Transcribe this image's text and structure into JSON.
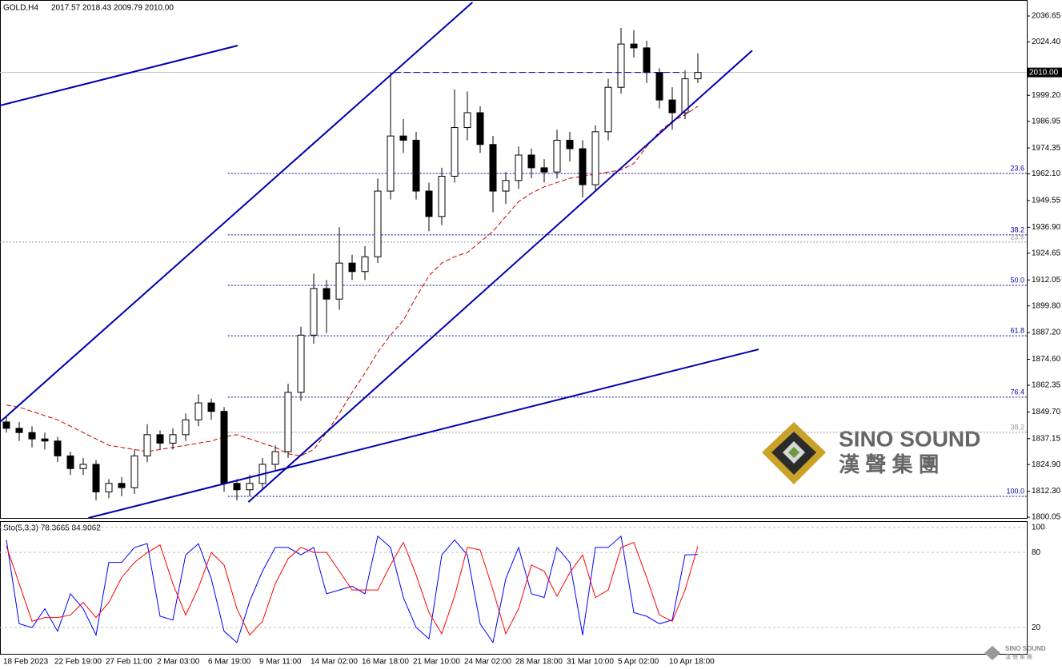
{
  "chart_data": [
    {
      "type": "candlestick",
      "title": "GOLD,H4",
      "header": "2017.57 2018.43 2009.79 2010.00",
      "categories": [
        "18 Feb 2023",
        null,
        null,
        null,
        "22 Feb 19:00",
        null,
        null,
        null,
        "27 Feb 11:00",
        null,
        null,
        null,
        "2 Mar 03:00",
        null,
        null,
        null,
        "6 Mar 19:00",
        null,
        null,
        null,
        "9 Mar 11:00",
        null,
        null,
        null,
        "14 Mar 02:00",
        null,
        null,
        null,
        "16 Mar 18:00",
        null,
        null,
        null,
        "21 Mar 10:00",
        null,
        null,
        null,
        "24 Mar 02:00",
        null,
        null,
        null,
        "28 Mar 18:00",
        null,
        null,
        null,
        "31 Mar 10:00",
        null,
        null,
        null,
        "5 Apr 02:00",
        null,
        null,
        null,
        "10 Apr 18:00",
        null,
        null
      ],
      "open": [
        1845,
        1842,
        1840,
        1837,
        1836,
        1829,
        1823,
        1825,
        1812,
        1816,
        1814,
        1829,
        1839,
        1835,
        1839,
        1846,
        1854,
        1850,
        1816,
        1813,
        1816,
        1825,
        1831,
        1859,
        1886,
        1908,
        1903,
        1920,
        1916,
        1923,
        1954,
        1980,
        1978,
        1954,
        1942,
        1961,
        1984,
        1991,
        1976,
        1954,
        1959,
        1971,
        1965,
        1963,
        1978,
        1974,
        1957,
        1982,
        2003,
        2023.4,
        2021.6,
        2010,
        1997,
        1991,
        2007
      ],
      "high": [
        1848,
        1845,
        1843,
        1840,
        1838,
        1831,
        1828,
        1827,
        1818,
        1819,
        1832,
        1844,
        1841,
        1842,
        1849,
        1858,
        1856,
        1852,
        1818,
        1820,
        1828,
        1834,
        1863,
        1890,
        1915,
        1912,
        1937,
        1924,
        1928,
        1960,
        2010,
        1988,
        1982,
        1958,
        1965,
        2002,
        2001,
        1994,
        1980,
        1963,
        1975,
        1974,
        1969,
        1983,
        1982,
        1978,
        1985,
        2007,
        2031,
        2030,
        2025,
        2012,
        2003,
        2011,
        2019
      ],
      "low": [
        1840,
        1836,
        1833,
        1832,
        1826,
        1820,
        1820,
        1808,
        1809,
        1810,
        1811,
        1826,
        1832,
        1832,
        1836,
        1843,
        1846,
        1812,
        1808,
        1810,
        1813,
        1822,
        1828,
        1855,
        1882,
        1887,
        1898,
        1912,
        1912,
        1920,
        1950,
        1972,
        1950,
        1935,
        1938,
        1958,
        1978,
        1972,
        1944,
        1948,
        1955,
        1960,
        1958,
        1960,
        1968,
        1951,
        1954,
        1978,
        2000,
        2017,
        2005,
        1993,
        1983,
        1988,
        2005
      ],
      "close": [
        1842,
        1840,
        1837,
        1836,
        1829,
        1823,
        1825,
        1812,
        1816,
        1814,
        1829,
        1839,
        1835,
        1839,
        1846,
        1854,
        1850,
        1816,
        1813,
        1816,
        1825,
        1831,
        1859,
        1886,
        1908,
        1903,
        1920,
        1916,
        1923,
        1954,
        1980,
        1978,
        1954,
        1942,
        1961,
        1984,
        1991,
        1976,
        1954,
        1959,
        1971,
        1965,
        1963,
        1978,
        1974,
        1957,
        1982,
        2003,
        2023.4,
        2021.6,
        2010,
        1997,
        1991,
        2007,
        2010
      ],
      "moving_average": [
        1853,
        1852,
        1850,
        1848,
        1846,
        1843,
        1840,
        1837,
        1834,
        1833,
        1832,
        1831,
        1832,
        1833,
        1834,
        1835,
        1836,
        1838,
        1839,
        1837,
        1835,
        1833,
        1830,
        1829,
        1832,
        1840,
        1849,
        1859,
        1868,
        1878,
        1886,
        1893,
        1904,
        1914,
        1920,
        1923,
        1925,
        1930,
        1935,
        1942,
        1949,
        1953,
        1956,
        1958,
        1960,
        1961,
        1962,
        1963,
        1964,
        1967,
        1975,
        1982,
        1987,
        1990,
        1994
      ],
      "ma_color": "#cc0000",
      "ylim": [
        1799.7,
        2044.2
      ],
      "yticks": [
        {
          "value": 2036.65,
          "label": "2036.65"
        },
        {
          "value": 2024.4,
          "label": "2024.40"
        },
        {
          "value": 1999.2,
          "label": "1999.20"
        },
        {
          "value": 1986.95,
          "label": "1986.95"
        },
        {
          "value": 1974.35,
          "label": "1974.35"
        },
        {
          "value": 1962.1,
          "label": "1962.10"
        },
        {
          "value": 1949.55,
          "label": "1949.55"
        },
        {
          "value": 1936.9,
          "label": "1936.90"
        },
        {
          "value": 1924.65,
          "label": "1924.65"
        },
        {
          "value": 1912.05,
          "label": "1912.05"
        },
        {
          "value": 1899.8,
          "label": "1899.80"
        },
        {
          "value": 1887.2,
          "label": "1887.20"
        },
        {
          "value": 1874.6,
          "label": "1874.60"
        },
        {
          "value": 1862.35,
          "label": "1862.35"
        },
        {
          "value": 1849.7,
          "label": "1849.70"
        },
        {
          "value": 1837.15,
          "label": "1837.15"
        },
        {
          "value": 1824.9,
          "label": "1824.90"
        },
        {
          "value": 1812.3,
          "label": "1812.30"
        },
        {
          "value": 1800.05,
          "label": "1800.05"
        }
      ],
      "current_price": {
        "value": 2010,
        "label": "2010.00"
      },
      "fib_start": 17.3,
      "fib_levels": [
        {
          "label": "23.6",
          "value": 1962.3,
          "color": "#0000a0"
        },
        {
          "label": "38.2",
          "value": 1933.3,
          "color": "#0000a0"
        },
        {
          "label": "50.0",
          "value": 1909.5,
          "color": "#0000a0"
        },
        {
          "label": "61.8",
          "value": 1885.7,
          "color": "#0000a0"
        },
        {
          "label": "76.4",
          "value": 1856.7,
          "color": "#0000a0"
        },
        {
          "label": "100.0",
          "value": 1809.9,
          "color": "#0000a0"
        },
        {
          "label": "23.6",
          "value": 1929.9,
          "color": "#999999"
        },
        {
          "label": "38.2",
          "value": 1840.1,
          "color": "#999999"
        }
      ],
      "trendlines": [
        {
          "x": [
            -0.5,
            36.4
          ],
          "y": [
            1845.0,
            2043.1
          ],
          "style": "solid"
        },
        {
          "x": [
            -0.5,
            18.06
          ],
          "y": [
            1994.4,
            2022.7
          ],
          "style": "solid"
        },
        {
          "x": [
            18.9,
            58.25
          ],
          "y": [
            1807.2,
            2020.4
          ],
          "style": "solid"
        },
        {
          "x": [
            6.4,
            58.75
          ],
          "y": [
            1799.7,
            1879.3
          ],
          "style": "solid"
        },
        {
          "x": [
            30.3,
            52.9
          ],
          "y": [
            2010.0,
            2010.0
          ],
          "style": "dash"
        }
      ],
      "trend_color": "#0000b0",
      "watermark": {
        "name": "SINO SOUND",
        "chinese": "漢 聲 集 團"
      }
    },
    {
      "type": "line",
      "title": "Sto(5,3,3) 78.3665 84.9062",
      "series": [
        {
          "color": "#0000ff",
          "values": [
            90,
            23,
            20,
            35,
            17,
            47,
            35,
            14,
            72,
            72,
            84,
            87,
            29,
            26,
            78,
            87,
            59,
            17,
            8,
            41,
            65,
            84,
            84,
            78,
            84,
            47,
            50,
            53,
            47,
            93,
            84,
            44,
            20,
            11,
            78,
            90,
            78,
            23,
            8,
            59,
            84,
            47,
            44,
            84,
            72,
            14,
            84,
            84,
            93,
            32,
            29,
            23,
            26,
            78,
            78.3665
          ]
        },
        {
          "color": "#ff0000",
          "values": [
            85,
            55,
            25,
            28,
            28,
            30,
            40,
            28,
            40,
            60,
            72,
            80,
            86,
            55,
            30,
            52,
            80,
            70,
            35,
            14,
            25,
            55,
            75,
            84,
            80,
            80,
            65,
            50,
            50,
            50,
            70,
            88,
            62,
            32,
            15,
            45,
            84,
            82,
            50,
            15,
            35,
            70,
            65,
            45,
            64,
            78,
            44,
            50,
            84,
            88,
            60,
            30,
            25,
            50,
            84.9062
          ]
        }
      ],
      "ylim": [
        -1,
        105
      ],
      "yticks": [
        100,
        80,
        20
      ]
    }
  ]
}
